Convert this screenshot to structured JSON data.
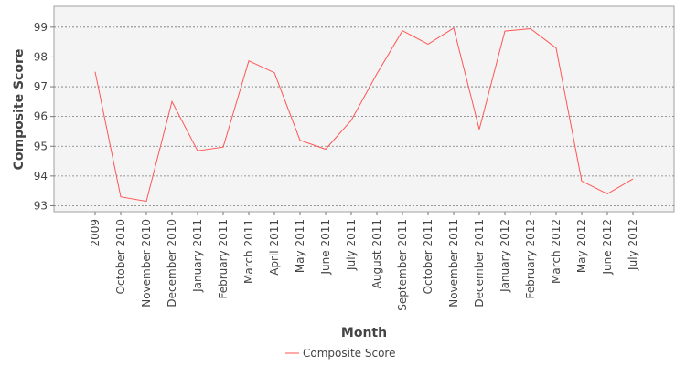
{
  "chart_data": {
    "type": "line",
    "title": "",
    "xlabel": "Month",
    "ylabel": "Composite Score",
    "ylim": [
      92.8,
      99.7
    ],
    "yticks": [
      93,
      94,
      95,
      96,
      97,
      98,
      99
    ],
    "grid": true,
    "legend_position": "bottom",
    "categories": [
      "2009",
      "October 2010",
      "November 2010",
      "December 2010",
      "January 2011",
      "February 2011",
      "March 2011",
      "April 2011",
      "May 2011",
      "June 2011",
      "July 2011",
      "August 2011",
      "September 2011",
      "October 2011",
      "November 2011",
      "December 2011",
      "January 2012",
      "February 2012",
      "March 2012",
      "May 2012",
      "June 2012",
      "July 2012"
    ],
    "series": [
      {
        "name": "Composite Score",
        "color": "#ff5555",
        "values": [
          97.5,
          93.3,
          93.15,
          96.5,
          94.85,
          94.97,
          97.87,
          97.47,
          95.2,
          94.9,
          95.87,
          97.43,
          98.88,
          98.43,
          98.97,
          95.57,
          98.87,
          98.95,
          98.3,
          93.83,
          93.4,
          93.9
        ]
      }
    ]
  }
}
